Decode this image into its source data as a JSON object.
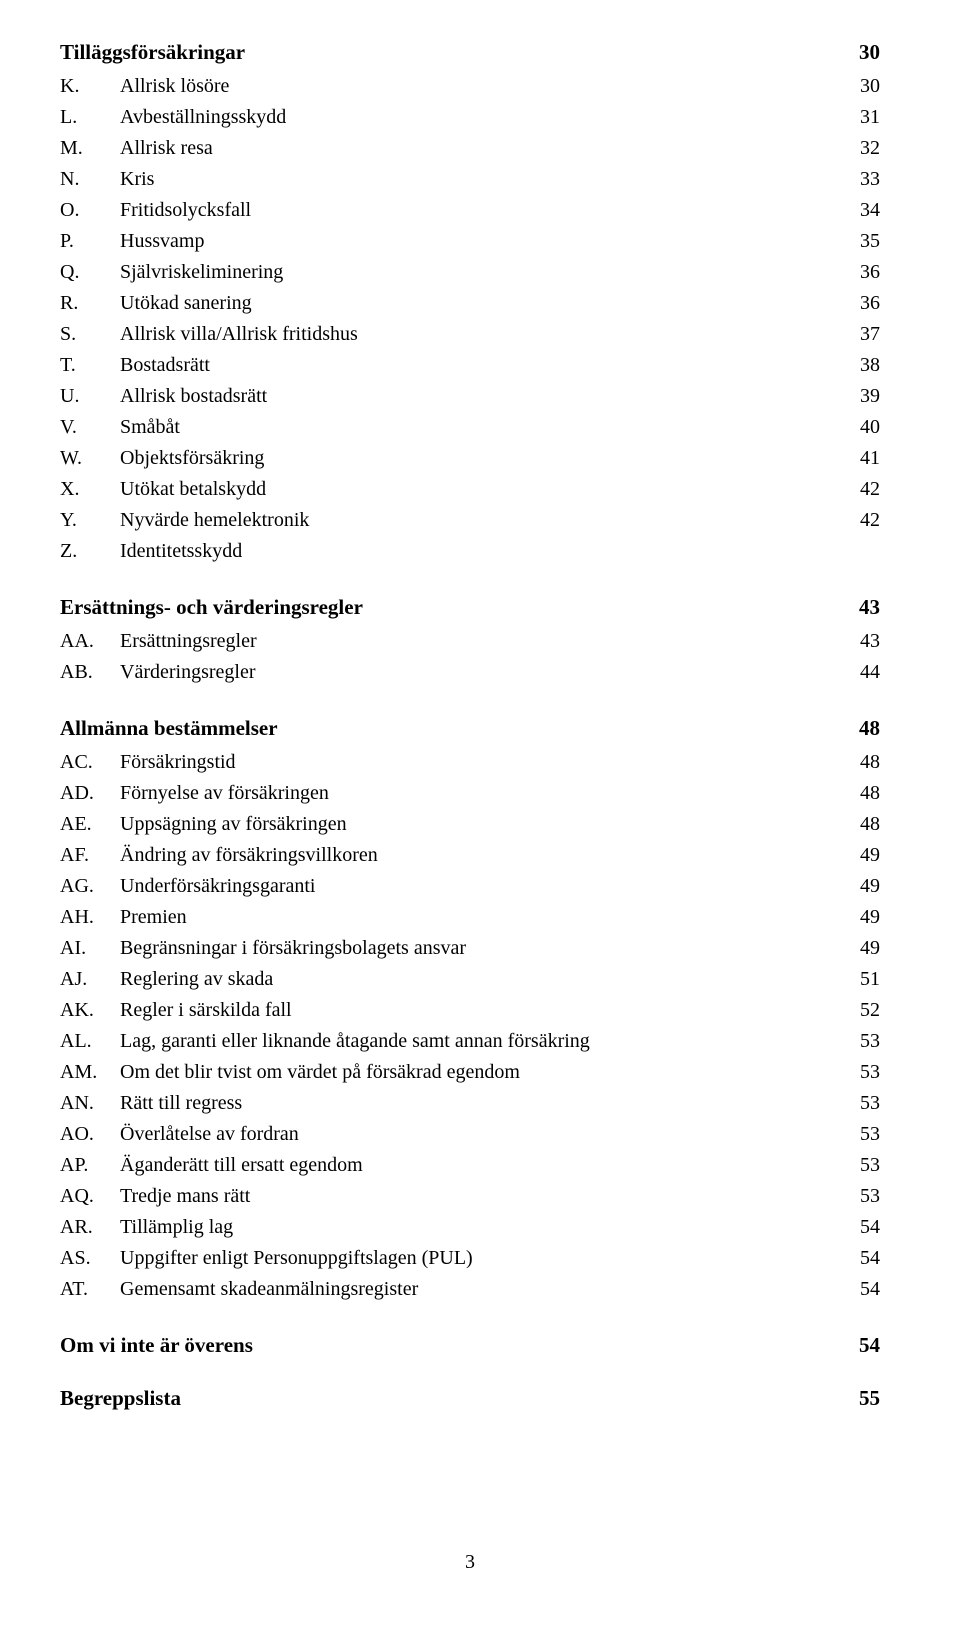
{
  "sections": [
    {
      "heading": "Tilläggsförsäkringar",
      "heading_page": "30",
      "items": [
        {
          "prefix": "K.",
          "label": "Allrisk lösöre",
          "page": "30"
        },
        {
          "prefix": "L.",
          "label": "Avbeställningsskydd",
          "page": "31"
        },
        {
          "prefix": "M.",
          "label": "Allrisk resa",
          "page": "32"
        },
        {
          "prefix": "N.",
          "label": "Kris",
          "page": "33"
        },
        {
          "prefix": "O.",
          "label": "Fritidsolycksfall",
          "page": "34"
        },
        {
          "prefix": "P.",
          "label": "Hussvamp",
          "page": "35"
        },
        {
          "prefix": "Q.",
          "label": "Självriskeliminering",
          "page": "36"
        },
        {
          "prefix": "R.",
          "label": "Utökad sanering",
          "page": "36"
        },
        {
          "prefix": "S.",
          "label": "Allrisk villa/Allrisk fritidshus",
          "page": "37"
        },
        {
          "prefix": "T.",
          "label": "Bostadsrätt",
          "page": "38"
        },
        {
          "prefix": "U.",
          "label": "Allrisk bostadsrätt",
          "page": "39"
        },
        {
          "prefix": "V.",
          "label": "Småbåt",
          "page": "40"
        },
        {
          "prefix": "W.",
          "label": "Objektsförsäkring",
          "page": "41"
        },
        {
          "prefix": "X.",
          "label": "Utökat betalskydd",
          "page": "42"
        },
        {
          "prefix": "Y.",
          "label": "Nyvärde hemelektronik",
          "page": "42"
        },
        {
          "prefix": "Z.",
          "label": "Identitetsskydd",
          "page": ""
        }
      ]
    },
    {
      "heading": "Ersättnings- och värderingsregler",
      "heading_page": "43",
      "items": [
        {
          "prefix": "AA.",
          "label": "Ersättningsregler",
          "page": "43"
        },
        {
          "prefix": "AB.",
          "label": "Värderingsregler",
          "page": "44"
        }
      ]
    },
    {
      "heading": "Allmänna bestämmelser",
      "heading_page": "48",
      "items": [
        {
          "prefix": "AC.",
          "label": "Försäkringstid",
          "page": "48"
        },
        {
          "prefix": "AD.",
          "label": "Förnyelse av försäkringen",
          "page": "48"
        },
        {
          "prefix": "AE.",
          "label": "Uppsägning av försäkringen",
          "page": "48"
        },
        {
          "prefix": "AF.",
          "label": "Ändring av försäkringsvillkoren",
          "page": "49"
        },
        {
          "prefix": "AG.",
          "label": "Underförsäkringsgaranti",
          "page": "49"
        },
        {
          "prefix": "AH.",
          "label": "Premien",
          "page": "49"
        },
        {
          "prefix": "AI.",
          "label": "Begränsningar i försäkringsbolagets ansvar",
          "page": "49"
        },
        {
          "prefix": "AJ.",
          "label": "Reglering av skada",
          "page": "51"
        },
        {
          "prefix": "AK.",
          "label": "Regler i särskilda fall",
          "page": "52"
        },
        {
          "prefix": "AL.",
          "label": "Lag, garanti eller liknande åtagande samt annan försäkring",
          "page": "53"
        },
        {
          "prefix": "AM.",
          "label": "Om det blir tvist om värdet på försäkrad egendom",
          "page": "53"
        },
        {
          "prefix": "AN.",
          "label": "Rätt till regress",
          "page": "53"
        },
        {
          "prefix": "AO.",
          "label": "Överlåtelse av fordran",
          "page": "53"
        },
        {
          "prefix": "AP.",
          "label": "Äganderätt till ersatt egendom",
          "page": "53"
        },
        {
          "prefix": "AQ.",
          "label": "Tredje mans rätt",
          "page": "53"
        },
        {
          "prefix": "AR.",
          "label": "Tillämplig lag",
          "page": "54"
        },
        {
          "prefix": "AS.",
          "label": "Uppgifter enligt Personuppgiftslagen (PUL)",
          "page": "54"
        },
        {
          "prefix": "AT.",
          "label": "Gemensamt skadeanmälningsregister",
          "page": "54"
        }
      ]
    },
    {
      "heading": "Om vi inte är överens",
      "heading_page": "54",
      "items": []
    },
    {
      "heading": "Begreppslista",
      "heading_page": "55",
      "items": []
    }
  ],
  "page_number": "3"
}
